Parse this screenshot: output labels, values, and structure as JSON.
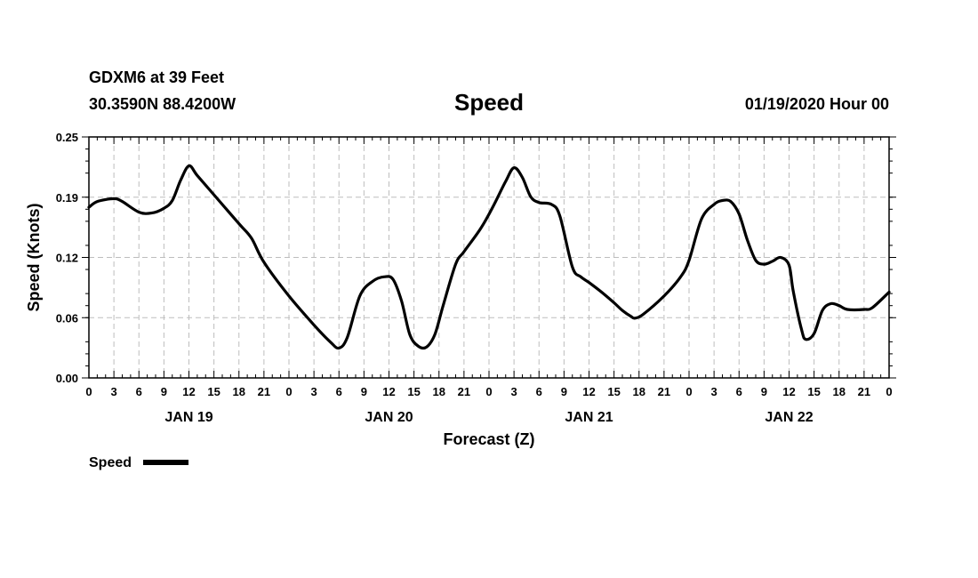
{
  "header": {
    "station": "GDXM6 at 39 Feet",
    "coordinates": "30.3590N 88.4200W",
    "title": "Speed",
    "run_time": "01/19/2020 Hour 00"
  },
  "chart_data": {
    "type": "line",
    "title": "Speed",
    "xlabel": "Forecast (Z)",
    "ylabel": "Speed (Knots)",
    "ylim": [
      0,
      0.25
    ],
    "xlim_hours": [
      0,
      96
    ],
    "y_ticks": [
      "0.00",
      "0.06",
      "0.12",
      "0.19",
      "0.25"
    ],
    "y_tick_values": [
      0,
      0.0625,
      0.125,
      0.1875,
      0.25
    ],
    "x_tick_interval_hours": 3,
    "x_tick_labels": [
      "0",
      "3",
      "6",
      "9",
      "12",
      "15",
      "18",
      "21",
      "0",
      "3",
      "6",
      "9",
      "12",
      "15",
      "18",
      "21",
      "0",
      "3",
      "6",
      "9",
      "12",
      "15",
      "18",
      "21",
      "0",
      "3",
      "6",
      "9",
      "12",
      "15",
      "18",
      "21",
      "0"
    ],
    "day_labels": [
      {
        "hour": 12,
        "label": "JAN 19"
      },
      {
        "hour": 36,
        "label": "JAN 20"
      },
      {
        "hour": 60,
        "label": "JAN 21"
      },
      {
        "hour": 84,
        "label": "JAN 22"
      }
    ],
    "grid": true,
    "legend": "bottom-left",
    "series": [
      {
        "name": "Speed",
        "color": "#000000",
        "points": [
          [
            0,
            0.177
          ],
          [
            1,
            0.183
          ],
          [
            3,
            0.186
          ],
          [
            4,
            0.183
          ],
          [
            6,
            0.172
          ],
          [
            7.5,
            0.171
          ],
          [
            9,
            0.176
          ],
          [
            10,
            0.184
          ],
          [
            11,
            0.205
          ],
          [
            12,
            0.22
          ],
          [
            13,
            0.21
          ],
          [
            15,
            0.19
          ],
          [
            18,
            0.16
          ],
          [
            19.5,
            0.145
          ],
          [
            21,
            0.12
          ],
          [
            24,
            0.085
          ],
          [
            27,
            0.055
          ],
          [
            29,
            0.037
          ],
          [
            30,
            0.031
          ],
          [
            31,
            0.042
          ],
          [
            32.5,
            0.085
          ],
          [
            34,
            0.1
          ],
          [
            35.5,
            0.105
          ],
          [
            36.5,
            0.102
          ],
          [
            37.5,
            0.08
          ],
          [
            38.5,
            0.045
          ],
          [
            39.5,
            0.033
          ],
          [
            40.5,
            0.032
          ],
          [
            41.5,
            0.045
          ],
          [
            42.5,
            0.075
          ],
          [
            44,
            0.118
          ],
          [
            45,
            0.131
          ],
          [
            47,
            0.155
          ],
          [
            48.5,
            0.178
          ],
          [
            50,
            0.204
          ],
          [
            51,
            0.218
          ],
          [
            52,
            0.208
          ],
          [
            53,
            0.188
          ],
          [
            54,
            0.182
          ],
          [
            55.5,
            0.18
          ],
          [
            56.5,
            0.168
          ],
          [
            58,
            0.115
          ],
          [
            59,
            0.105
          ],
          [
            60,
            0.099
          ],
          [
            61.5,
            0.089
          ],
          [
            63,
            0.078
          ],
          [
            64,
            0.07
          ],
          [
            65,
            0.064
          ],
          [
            65.5,
            0.062
          ],
          [
            66.5,
            0.066
          ],
          [
            69,
            0.085
          ],
          [
            71,
            0.105
          ],
          [
            72,
            0.122
          ],
          [
            73.5,
            0.165
          ],
          [
            75,
            0.18
          ],
          [
            76,
            0.184
          ],
          [
            77,
            0.183
          ],
          [
            78,
            0.17
          ],
          [
            79,
            0.143
          ],
          [
            80,
            0.122
          ],
          [
            81,
            0.118
          ],
          [
            82,
            0.121
          ],
          [
            83,
            0.125
          ],
          [
            84,
            0.117
          ],
          [
            84.5,
            0.09
          ],
          [
            85.5,
            0.05
          ],
          [
            86,
            0.04
          ],
          [
            87,
            0.046
          ],
          [
            88,
            0.07
          ],
          [
            89,
            0.077
          ],
          [
            90,
            0.075
          ],
          [
            91,
            0.071
          ],
          [
            93,
            0.071
          ],
          [
            94,
            0.073
          ],
          [
            96,
            0.089
          ]
        ]
      }
    ]
  },
  "legend": {
    "label": "Speed"
  }
}
